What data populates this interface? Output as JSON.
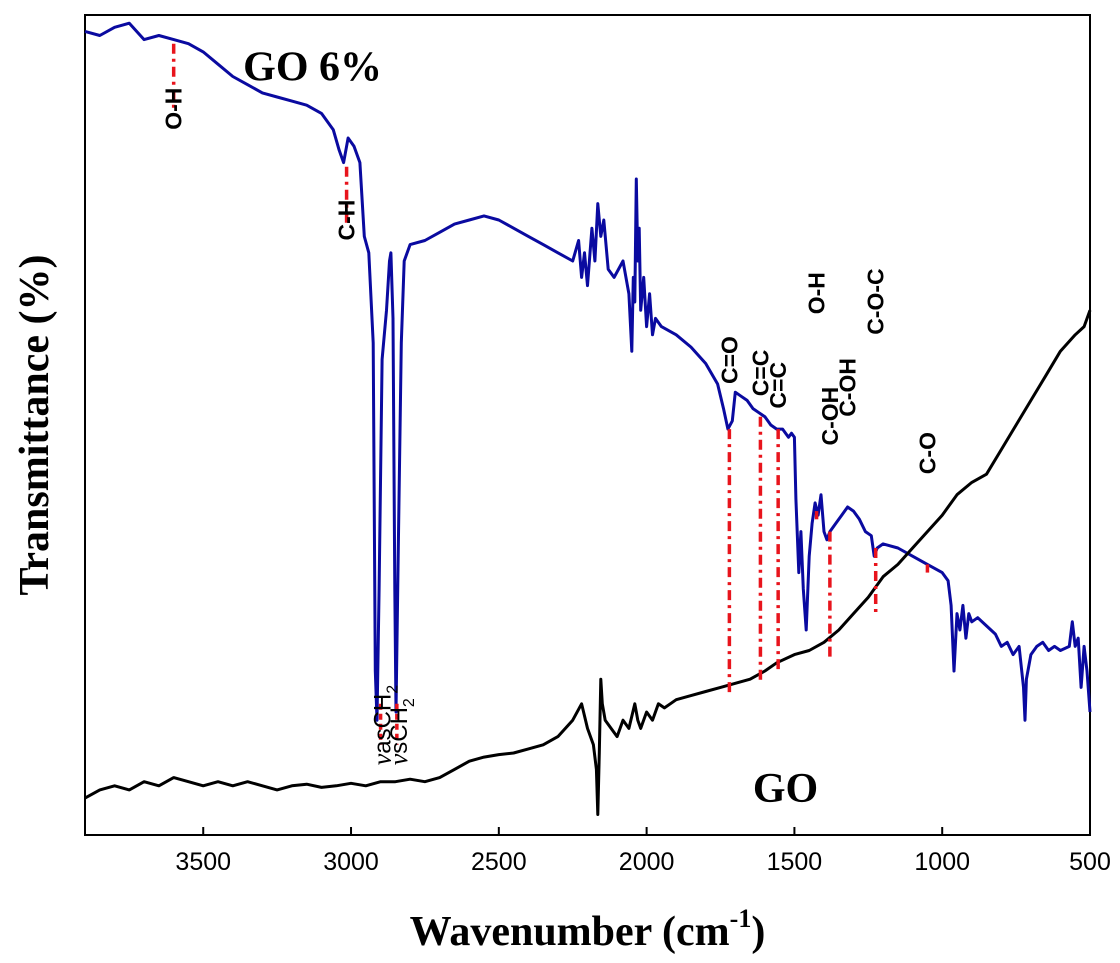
{
  "chart_data": {
    "type": "line",
    "xlabel": "Wavenumber (cm",
    "xlabel_sup": "-1",
    "xlabel_close": ")",
    "ylabel": "Transmittance (%)",
    "xlim": [
      3900,
      500
    ],
    "x_reversed": true,
    "xticks": [
      3500,
      3000,
      2500,
      2000,
      1500,
      1000,
      500
    ],
    "ylim": [
      0,
      100
    ],
    "grid": false,
    "series": [
      {
        "name": "GO 6%",
        "color": "#0a0aa0",
        "points": [
          [
            3900,
            98
          ],
          [
            3850,
            97.5
          ],
          [
            3800,
            98.5
          ],
          [
            3750,
            99
          ],
          [
            3700,
            97
          ],
          [
            3650,
            97.5
          ],
          [
            3600,
            97
          ],
          [
            3550,
            96.5
          ],
          [
            3500,
            95.5
          ],
          [
            3450,
            94
          ],
          [
            3400,
            92.5
          ],
          [
            3350,
            91.5
          ],
          [
            3300,
            90.5
          ],
          [
            3250,
            90
          ],
          [
            3200,
            89.5
          ],
          [
            3150,
            89
          ],
          [
            3100,
            88
          ],
          [
            3060,
            86
          ],
          [
            3040,
            83.5
          ],
          [
            3025,
            82
          ],
          [
            3010,
            85
          ],
          [
            2990,
            84
          ],
          [
            2970,
            82
          ],
          [
            2955,
            73
          ],
          [
            2940,
            71
          ],
          [
            2925,
            60
          ],
          [
            2918,
            20
          ],
          [
            2912,
            14
          ],
          [
            2905,
            30
          ],
          [
            2895,
            58
          ],
          [
            2880,
            64
          ],
          [
            2870,
            70
          ],
          [
            2865,
            71
          ],
          [
            2858,
            63
          ],
          [
            2852,
            30
          ],
          [
            2848,
            15
          ],
          [
            2840,
            35
          ],
          [
            2830,
            60
          ],
          [
            2820,
            70
          ],
          [
            2800,
            72
          ],
          [
            2750,
            72.5
          ],
          [
            2700,
            73.5
          ],
          [
            2650,
            74.5
          ],
          [
            2600,
            75
          ],
          [
            2550,
            75.5
          ],
          [
            2500,
            75
          ],
          [
            2450,
            74
          ],
          [
            2400,
            73
          ],
          [
            2350,
            72
          ],
          [
            2300,
            71
          ],
          [
            2250,
            70
          ],
          [
            2230,
            72.5
          ],
          [
            2220,
            68
          ],
          [
            2210,
            71
          ],
          [
            2200,
            67
          ],
          [
            2185,
            74
          ],
          [
            2175,
            70
          ],
          [
            2165,
            77
          ],
          [
            2155,
            73
          ],
          [
            2145,
            75
          ],
          [
            2130,
            69
          ],
          [
            2110,
            68
          ],
          [
            2080,
            70
          ],
          [
            2060,
            66
          ],
          [
            2050,
            59
          ],
          [
            2045,
            68
          ],
          [
            2040,
            65
          ],
          [
            2035,
            80
          ],
          [
            2030,
            70
          ],
          [
            2025,
            74
          ],
          [
            2020,
            64
          ],
          [
            2010,
            68
          ],
          [
            2000,
            62
          ],
          [
            1990,
            66
          ],
          [
            1980,
            61
          ],
          [
            1970,
            63
          ],
          [
            1950,
            62
          ],
          [
            1900,
            61
          ],
          [
            1850,
            59.5
          ],
          [
            1800,
            57.5
          ],
          [
            1760,
            55
          ],
          [
            1740,
            52
          ],
          [
            1725,
            49.5
          ],
          [
            1710,
            50.5
          ],
          [
            1700,
            54
          ],
          [
            1680,
            53.5
          ],
          [
            1660,
            53
          ],
          [
            1640,
            52
          ],
          [
            1620,
            51.5
          ],
          [
            1600,
            51
          ],
          [
            1580,
            50
          ],
          [
            1560,
            49.5
          ],
          [
            1540,
            49.5
          ],
          [
            1520,
            48.5
          ],
          [
            1510,
            49
          ],
          [
            1500,
            48.5
          ],
          [
            1495,
            41
          ],
          [
            1485,
            32
          ],
          [
            1478,
            37
          ],
          [
            1470,
            30
          ],
          [
            1460,
            25
          ],
          [
            1450,
            34
          ],
          [
            1440,
            38
          ],
          [
            1430,
            40.5
          ],
          [
            1420,
            39
          ],
          [
            1410,
            41.5
          ],
          [
            1400,
            37
          ],
          [
            1390,
            36
          ],
          [
            1380,
            37
          ],
          [
            1360,
            38
          ],
          [
            1340,
            39
          ],
          [
            1320,
            40
          ],
          [
            1300,
            39.5
          ],
          [
            1280,
            38.5
          ],
          [
            1260,
            37
          ],
          [
            1240,
            36.5
          ],
          [
            1230,
            34
          ],
          [
            1220,
            35
          ],
          [
            1200,
            35.5
          ],
          [
            1150,
            35
          ],
          [
            1100,
            34
          ],
          [
            1050,
            33
          ],
          [
            1000,
            32
          ],
          [
            980,
            31
          ],
          [
            970,
            28
          ],
          [
            960,
            20
          ],
          [
            950,
            27
          ],
          [
            940,
            25
          ],
          [
            930,
            28
          ],
          [
            920,
            24
          ],
          [
            910,
            27
          ],
          [
            900,
            26
          ],
          [
            880,
            26.5
          ],
          [
            850,
            25.5
          ],
          [
            820,
            24.5
          ],
          [
            800,
            23
          ],
          [
            780,
            23.5
          ],
          [
            760,
            22
          ],
          [
            740,
            23
          ],
          [
            725,
            18
          ],
          [
            720,
            14
          ],
          [
            715,
            19
          ],
          [
            700,
            22
          ],
          [
            680,
            23
          ],
          [
            660,
            23.5
          ],
          [
            640,
            22.5
          ],
          [
            620,
            23
          ],
          [
            600,
            22.5
          ],
          [
            570,
            23
          ],
          [
            560,
            26
          ],
          [
            550,
            23
          ],
          [
            540,
            24
          ],
          [
            530,
            18
          ],
          [
            520,
            23
          ],
          [
            510,
            20
          ],
          [
            500,
            15
          ]
        ]
      },
      {
        "name": "GO",
        "color": "#000000",
        "points": [
          [
            3900,
            4.5
          ],
          [
            3850,
            5.5
          ],
          [
            3800,
            6
          ],
          [
            3750,
            5.5
          ],
          [
            3700,
            6.5
          ],
          [
            3650,
            6
          ],
          [
            3600,
            7
          ],
          [
            3550,
            6.5
          ],
          [
            3500,
            6
          ],
          [
            3450,
            6.5
          ],
          [
            3400,
            6
          ],
          [
            3350,
            6.5
          ],
          [
            3300,
            6
          ],
          [
            3250,
            5.5
          ],
          [
            3200,
            6
          ],
          [
            3150,
            6.2
          ],
          [
            3100,
            5.8
          ],
          [
            3050,
            6
          ],
          [
            3000,
            6.3
          ],
          [
            2950,
            6
          ],
          [
            2900,
            6.5
          ],
          [
            2850,
            6.5
          ],
          [
            2800,
            6.8
          ],
          [
            2750,
            6.5
          ],
          [
            2700,
            7
          ],
          [
            2650,
            8
          ],
          [
            2600,
            9
          ],
          [
            2550,
            9.5
          ],
          [
            2500,
            9.8
          ],
          [
            2450,
            10
          ],
          [
            2400,
            10.5
          ],
          [
            2350,
            11
          ],
          [
            2300,
            12
          ],
          [
            2250,
            14
          ],
          [
            2220,
            16
          ],
          [
            2200,
            13
          ],
          [
            2180,
            11
          ],
          [
            2170,
            8
          ],
          [
            2165,
            2.5
          ],
          [
            2160,
            10
          ],
          [
            2155,
            19
          ],
          [
            2150,
            16
          ],
          [
            2140,
            14
          ],
          [
            2120,
            13
          ],
          [
            2100,
            12
          ],
          [
            2080,
            14
          ],
          [
            2060,
            13
          ],
          [
            2040,
            16
          ],
          [
            2030,
            14
          ],
          [
            2020,
            13
          ],
          [
            2000,
            15
          ],
          [
            1980,
            14
          ],
          [
            1960,
            16
          ],
          [
            1940,
            15.5
          ],
          [
            1920,
            16
          ],
          [
            1900,
            16.5
          ],
          [
            1850,
            17
          ],
          [
            1800,
            17.5
          ],
          [
            1750,
            18
          ],
          [
            1700,
            18.5
          ],
          [
            1650,
            19
          ],
          [
            1600,
            20
          ],
          [
            1560,
            21
          ],
          [
            1500,
            22
          ],
          [
            1450,
            22.5
          ],
          [
            1400,
            23.5
          ],
          [
            1350,
            25
          ],
          [
            1300,
            27
          ],
          [
            1250,
            29
          ],
          [
            1200,
            31.5
          ],
          [
            1150,
            33
          ],
          [
            1100,
            35
          ],
          [
            1050,
            37
          ],
          [
            1000,
            39
          ],
          [
            950,
            41.5
          ],
          [
            900,
            43
          ],
          [
            850,
            44
          ],
          [
            800,
            47
          ],
          [
            750,
            50
          ],
          [
            700,
            53
          ],
          [
            650,
            56
          ],
          [
            600,
            59
          ],
          [
            550,
            61
          ],
          [
            520,
            62
          ],
          [
            500,
            64
          ]
        ]
      }
    ],
    "series_labels": [
      {
        "text": "GO 6%",
        "x": 3130,
        "y": 92
      },
      {
        "text": "GO",
        "x": 1530,
        "y": 4
      }
    ],
    "annotations": [
      {
        "label": "O-H",
        "x": 3600,
        "y_top": 96.5,
        "y_bot": 88.5,
        "y_text": 86
      },
      {
        "label": "C-H",
        "x": 3015,
        "y_top": 81.5,
        "y_bot": 74.5,
        "y_text": 72.5
      },
      {
        "label": "C=O",
        "x": 1720,
        "y_top": 49.5,
        "y_bot": 17,
        "y_text": 55
      },
      {
        "label": "C=C",
        "x": 1615,
        "y_top": 51,
        "y_bot": 18.5,
        "y_text": 53.5
      },
      {
        "label": "C=C",
        "x": 1555,
        "y_top": 49.5,
        "y_bot": 20,
        "y_text": 52
      },
      {
        "label": "O-H",
        "x": 1425,
        "y_top": 39.5,
        "y_bot": 38.5,
        "y_text": 63.5
      },
      {
        "label": "C-OH",
        "x": 1380,
        "y_top": 37,
        "y_bot": 21.5,
        "y_text": 47.5
      },
      {
        "label": "C-OH",
        "x": 1320,
        "y_top": 40,
        "y_bot": 40,
        "y_text": 51
      },
      {
        "label": "C-O-C",
        "x": 1225,
        "y_top": 35,
        "y_bot": 27,
        "y_text": 61
      },
      {
        "label": "C-O",
        "x": 1050,
        "y_top": 33,
        "y_bot": 32,
        "y_text": 44
      }
    ],
    "vibration_labels": [
      {
        "prefix": "ν",
        "main": "asCH",
        "sub": "2",
        "x": 2900,
        "y_top": 14,
        "y_bot": 13
      },
      {
        "prefix": "ν",
        "main": "sCH",
        "sub": "2",
        "x": 2845,
        "y_top": 15,
        "y_bot": 13
      }
    ]
  }
}
